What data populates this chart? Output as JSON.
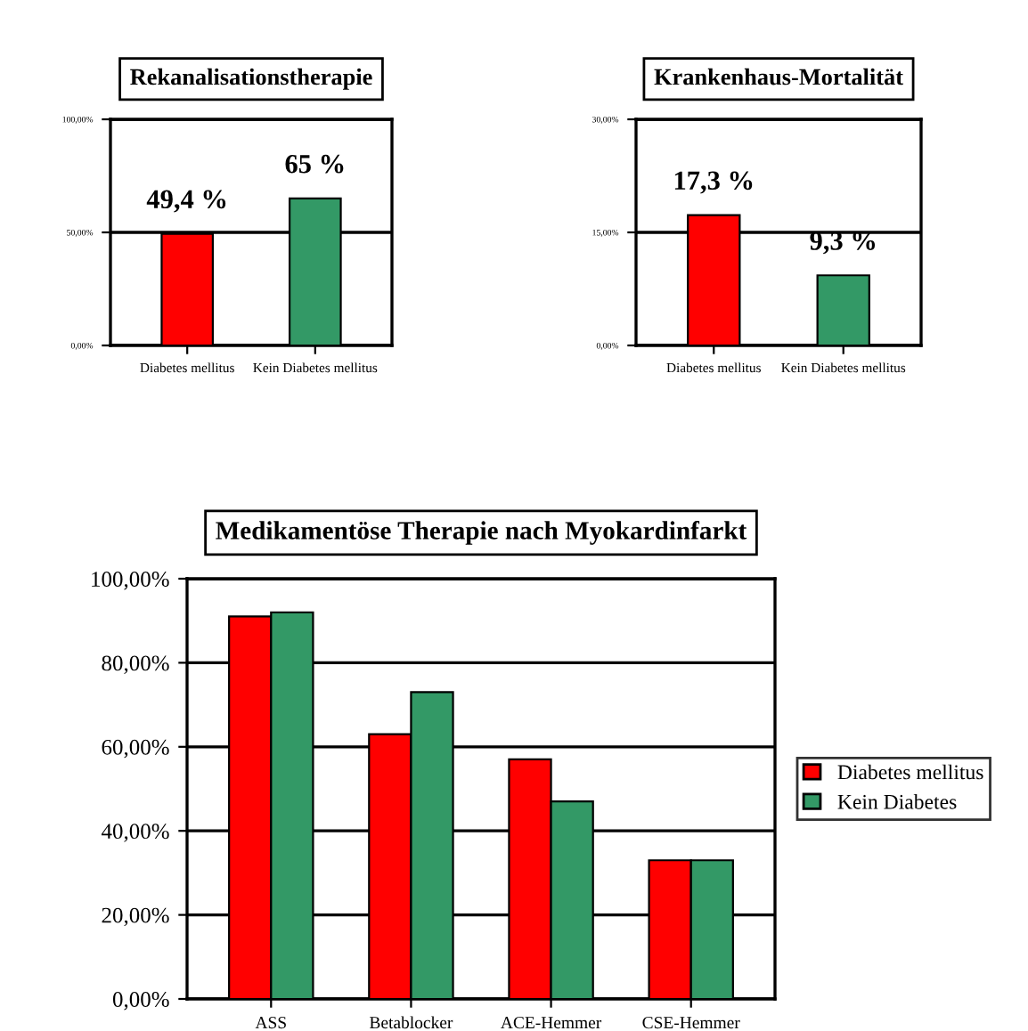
{
  "chart_data": [
    {
      "type": "bar",
      "title": "Rekanalisationstherapie",
      "categories": [
        "Diabetes mellitus",
        "Kein Diabetes mellitus"
      ],
      "values": [
        49.4,
        65
      ],
      "colors": [
        "#ff0000",
        "#339966"
      ],
      "value_labels": [
        "49,4 %",
        "65 %"
      ],
      "ylim": [
        0,
        100
      ],
      "yticks": [
        {
          "value": 0,
          "label": "0,00%"
        },
        {
          "value": 50,
          "label": "50,00%"
        },
        {
          "value": 100,
          "label": "100,00%"
        }
      ],
      "grid": "y"
    },
    {
      "type": "bar",
      "title": "Krankenhaus-Mortalität",
      "categories": [
        "Diabetes mellitus",
        "Kein Diabetes mellitus"
      ],
      "values": [
        17.3,
        9.3
      ],
      "colors": [
        "#ff0000",
        "#339966"
      ],
      "value_labels": [
        "17,3 %",
        "9,3 %"
      ],
      "ylim": [
        0,
        30
      ],
      "yticks": [
        {
          "value": 0,
          "label": "0,00%"
        },
        {
          "value": 15,
          "label": "15,00%"
        },
        {
          "value": 30,
          "label": "30,00%"
        }
      ],
      "grid": "y"
    },
    {
      "type": "bar",
      "title": "Medikamentöse Therapie nach Myokardinfarkt",
      "categories": [
        "ASS",
        "Betablocker",
        "ACE-Hemmer",
        "CSE-Hemmer"
      ],
      "series": [
        {
          "name": "Diabetes mellitus",
          "color": "#ff0000",
          "values": [
            91,
            63,
            57,
            33
          ]
        },
        {
          "name": "Kein Diabetes",
          "color": "#339966",
          "values": [
            92,
            73,
            47,
            33
          ]
        }
      ],
      "ylim": [
        0,
        100
      ],
      "yticks": [
        {
          "value": 0,
          "label": "0,00%"
        },
        {
          "value": 20,
          "label": "20,00%"
        },
        {
          "value": 40,
          "label": "40,00%"
        },
        {
          "value": 60,
          "label": "60,00%"
        },
        {
          "value": 80,
          "label": "80,00%"
        },
        {
          "value": 100,
          "label": "100,00%"
        }
      ],
      "grid": "y",
      "legend": "right"
    }
  ]
}
